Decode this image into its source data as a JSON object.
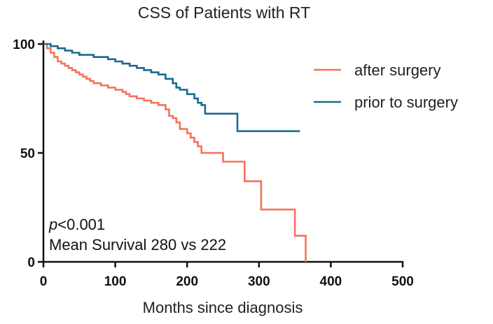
{
  "chart_data": {
    "type": "line",
    "title": "CSS of Patients with RT",
    "xlabel": "Months since diagnosis",
    "ylabel": "",
    "xlim": [
      0,
      500
    ],
    "ylim": [
      0,
      100
    ],
    "x_ticks": [
      0,
      100,
      200,
      300,
      400,
      500
    ],
    "y_ticks": [
      0,
      50,
      100
    ],
    "grid": false,
    "legend_position": "top-right",
    "annotations": {
      "p_symbol": "p",
      "p_rest": "<0.001",
      "mean_survival": "Mean Survival 280 vs 222"
    },
    "series": [
      {
        "name": "after surgery",
        "color": "#F4735A",
        "steps": [
          [
            0,
            100
          ],
          [
            5,
            98
          ],
          [
            10,
            96
          ],
          [
            15,
            94
          ],
          [
            20,
            92
          ],
          [
            25,
            91
          ],
          [
            30,
            90
          ],
          [
            35,
            89
          ],
          [
            40,
            88
          ],
          [
            45,
            87
          ],
          [
            50,
            86
          ],
          [
            55,
            85
          ],
          [
            60,
            84
          ],
          [
            65,
            83
          ],
          [
            70,
            82
          ],
          [
            80,
            81
          ],
          [
            90,
            80
          ],
          [
            100,
            79
          ],
          [
            110,
            78
          ],
          [
            115,
            77
          ],
          [
            120,
            76
          ],
          [
            130,
            75
          ],
          [
            140,
            74
          ],
          [
            150,
            73
          ],
          [
            160,
            72
          ],
          [
            170,
            70
          ],
          [
            175,
            67
          ],
          [
            180,
            66
          ],
          [
            185,
            64
          ],
          [
            190,
            61
          ],
          [
            200,
            59
          ],
          [
            205,
            57
          ],
          [
            210,
            55
          ],
          [
            215,
            53
          ],
          [
            220,
            50
          ],
          [
            250,
            46
          ],
          [
            280,
            37
          ],
          [
            303,
            24
          ],
          [
            350,
            12
          ],
          [
            365,
            0
          ]
        ]
      },
      {
        "name": "prior to surgery",
        "color": "#1A6A8E",
        "steps": [
          [
            0,
            100
          ],
          [
            10,
            99
          ],
          [
            20,
            98
          ],
          [
            30,
            97
          ],
          [
            40,
            96
          ],
          [
            50,
            95
          ],
          [
            70,
            94
          ],
          [
            90,
            93
          ],
          [
            100,
            92
          ],
          [
            110,
            91
          ],
          [
            120,
            90
          ],
          [
            130,
            89
          ],
          [
            140,
            88
          ],
          [
            150,
            87
          ],
          [
            160,
            86
          ],
          [
            170,
            84
          ],
          [
            180,
            82
          ],
          [
            185,
            80
          ],
          [
            190,
            79
          ],
          [
            200,
            77
          ],
          [
            210,
            75
          ],
          [
            215,
            73
          ],
          [
            220,
            72
          ],
          [
            225,
            68
          ],
          [
            270,
            60
          ],
          [
            357,
            60
          ]
        ]
      }
    ]
  }
}
